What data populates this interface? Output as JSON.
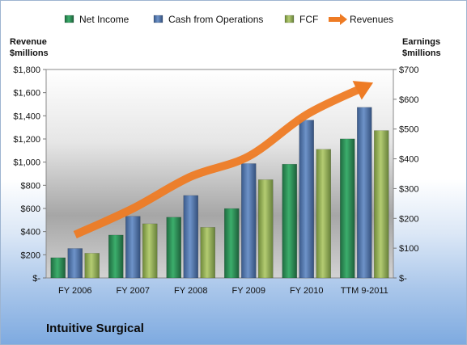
{
  "colors": {
    "net_income": "#2e8b57",
    "cash_from_operations": "#4f73a9",
    "fcf": "#93ad55",
    "revenues": "#ee7b24"
  },
  "company": "Intuitive Surgical",
  "chart_data": {
    "type": "bar",
    "title": "",
    "categories": [
      "FY 2006",
      "FY 2007",
      "FY 2008",
      "FY 2009",
      "FY 2010",
      "TTM 9-2011"
    ],
    "left_axis_label_line1": "Revenue",
    "left_axis_label_line2": "$millions",
    "right_axis_label_line1": "Earnings",
    "right_axis_label_line2": "$millions",
    "left_ylim": [
      0,
      1800
    ],
    "right_ylim": [
      0,
      700
    ],
    "left_ticks": [
      "$-",
      "$200",
      "$400",
      "$600",
      "$800",
      "$1,000",
      "$1,200",
      "$1,400",
      "$1,600",
      "$1,800"
    ],
    "right_ticks": [
      "$-",
      "$100",
      "$200",
      "$300",
      "$400",
      "$500",
      "$600",
      "$700"
    ],
    "legend_position": "top",
    "series": [
      {
        "name": "Net Income",
        "axis": "right",
        "kind": "bar",
        "color_key": "net_income",
        "values": [
          68,
          144,
          204,
          233,
          382,
          467
        ]
      },
      {
        "name": "Cash from Operations",
        "axis": "right",
        "kind": "bar",
        "color_key": "cash_from_operations",
        "values": [
          99,
          207,
          277,
          384,
          530,
          573
        ]
      },
      {
        "name": "FCF",
        "axis": "right",
        "kind": "bar",
        "color_key": "fcf",
        "values": [
          83,
          182,
          170,
          330,
          432,
          495
        ]
      },
      {
        "name": "Revenues",
        "axis": "left",
        "kind": "arrow-line",
        "color_key": "revenues",
        "values": [
          373,
          600,
          875,
          1050,
          1410,
          1650
        ]
      }
    ]
  }
}
